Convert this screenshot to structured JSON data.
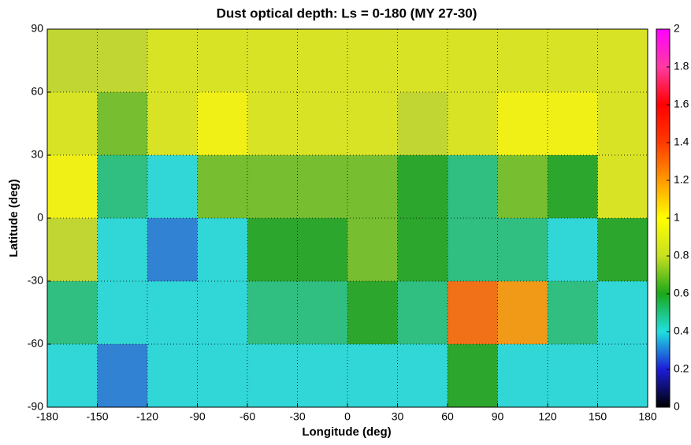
{
  "chart_data": {
    "type": "heatmap",
    "title": "Dust optical depth: Ls = 0-180 (MY 27-30)",
    "xlabel": "Longitude (deg)",
    "ylabel": "Latitude (deg)",
    "xlim": [
      -180,
      180
    ],
    "xticks": [
      -180,
      -150,
      -120,
      -90,
      -60,
      -30,
      0,
      30,
      60,
      90,
      120,
      150,
      180
    ],
    "ylim": [
      -90,
      90
    ],
    "yticks": [
      -90,
      -60,
      -30,
      0,
      30,
      60,
      90
    ],
    "grid": true,
    "clim": [
      0,
      2
    ],
    "cticks": [
      0,
      0.2,
      0.4,
      0.6,
      0.8,
      1,
      1.2,
      1.4,
      1.6,
      1.8,
      2
    ],
    "colormap": [
      "#000000",
      "#1c1cd8",
      "#1fe0e0",
      "#1aa81a",
      "#c8e020",
      "#ffff00",
      "#ff9a00",
      "#ff3a00",
      "#ff0000",
      "#ff3aa0",
      "#ff00ff"
    ],
    "z": [
      [
        0.8,
        0.8,
        0.9,
        0.9,
        0.9,
        0.9,
        0.9,
        0.9,
        0.9,
        0.9,
        0.9,
        0.9
      ],
      [
        0.9,
        0.7,
        0.9,
        1.0,
        0.9,
        0.9,
        0.9,
        0.8,
        0.9,
        1.0,
        1.0,
        0.9
      ],
      [
        1.0,
        0.5,
        0.4,
        0.7,
        0.7,
        0.7,
        0.7,
        0.6,
        0.5,
        0.7,
        0.6,
        0.9
      ],
      [
        0.8,
        0.4,
        0.3,
        0.4,
        0.6,
        0.6,
        0.7,
        0.6,
        0.5,
        0.5,
        0.4,
        0.6
      ],
      [
        0.5,
        0.4,
        0.4,
        0.4,
        0.5,
        0.5,
        0.6,
        0.5,
        1.3,
        1.2,
        0.5,
        0.4
      ],
      [
        0.4,
        0.3,
        0.4,
        0.4,
        0.4,
        0.4,
        0.4,
        0.4,
        0.6,
        0.4,
        0.4,
        0.4
      ]
    ]
  }
}
